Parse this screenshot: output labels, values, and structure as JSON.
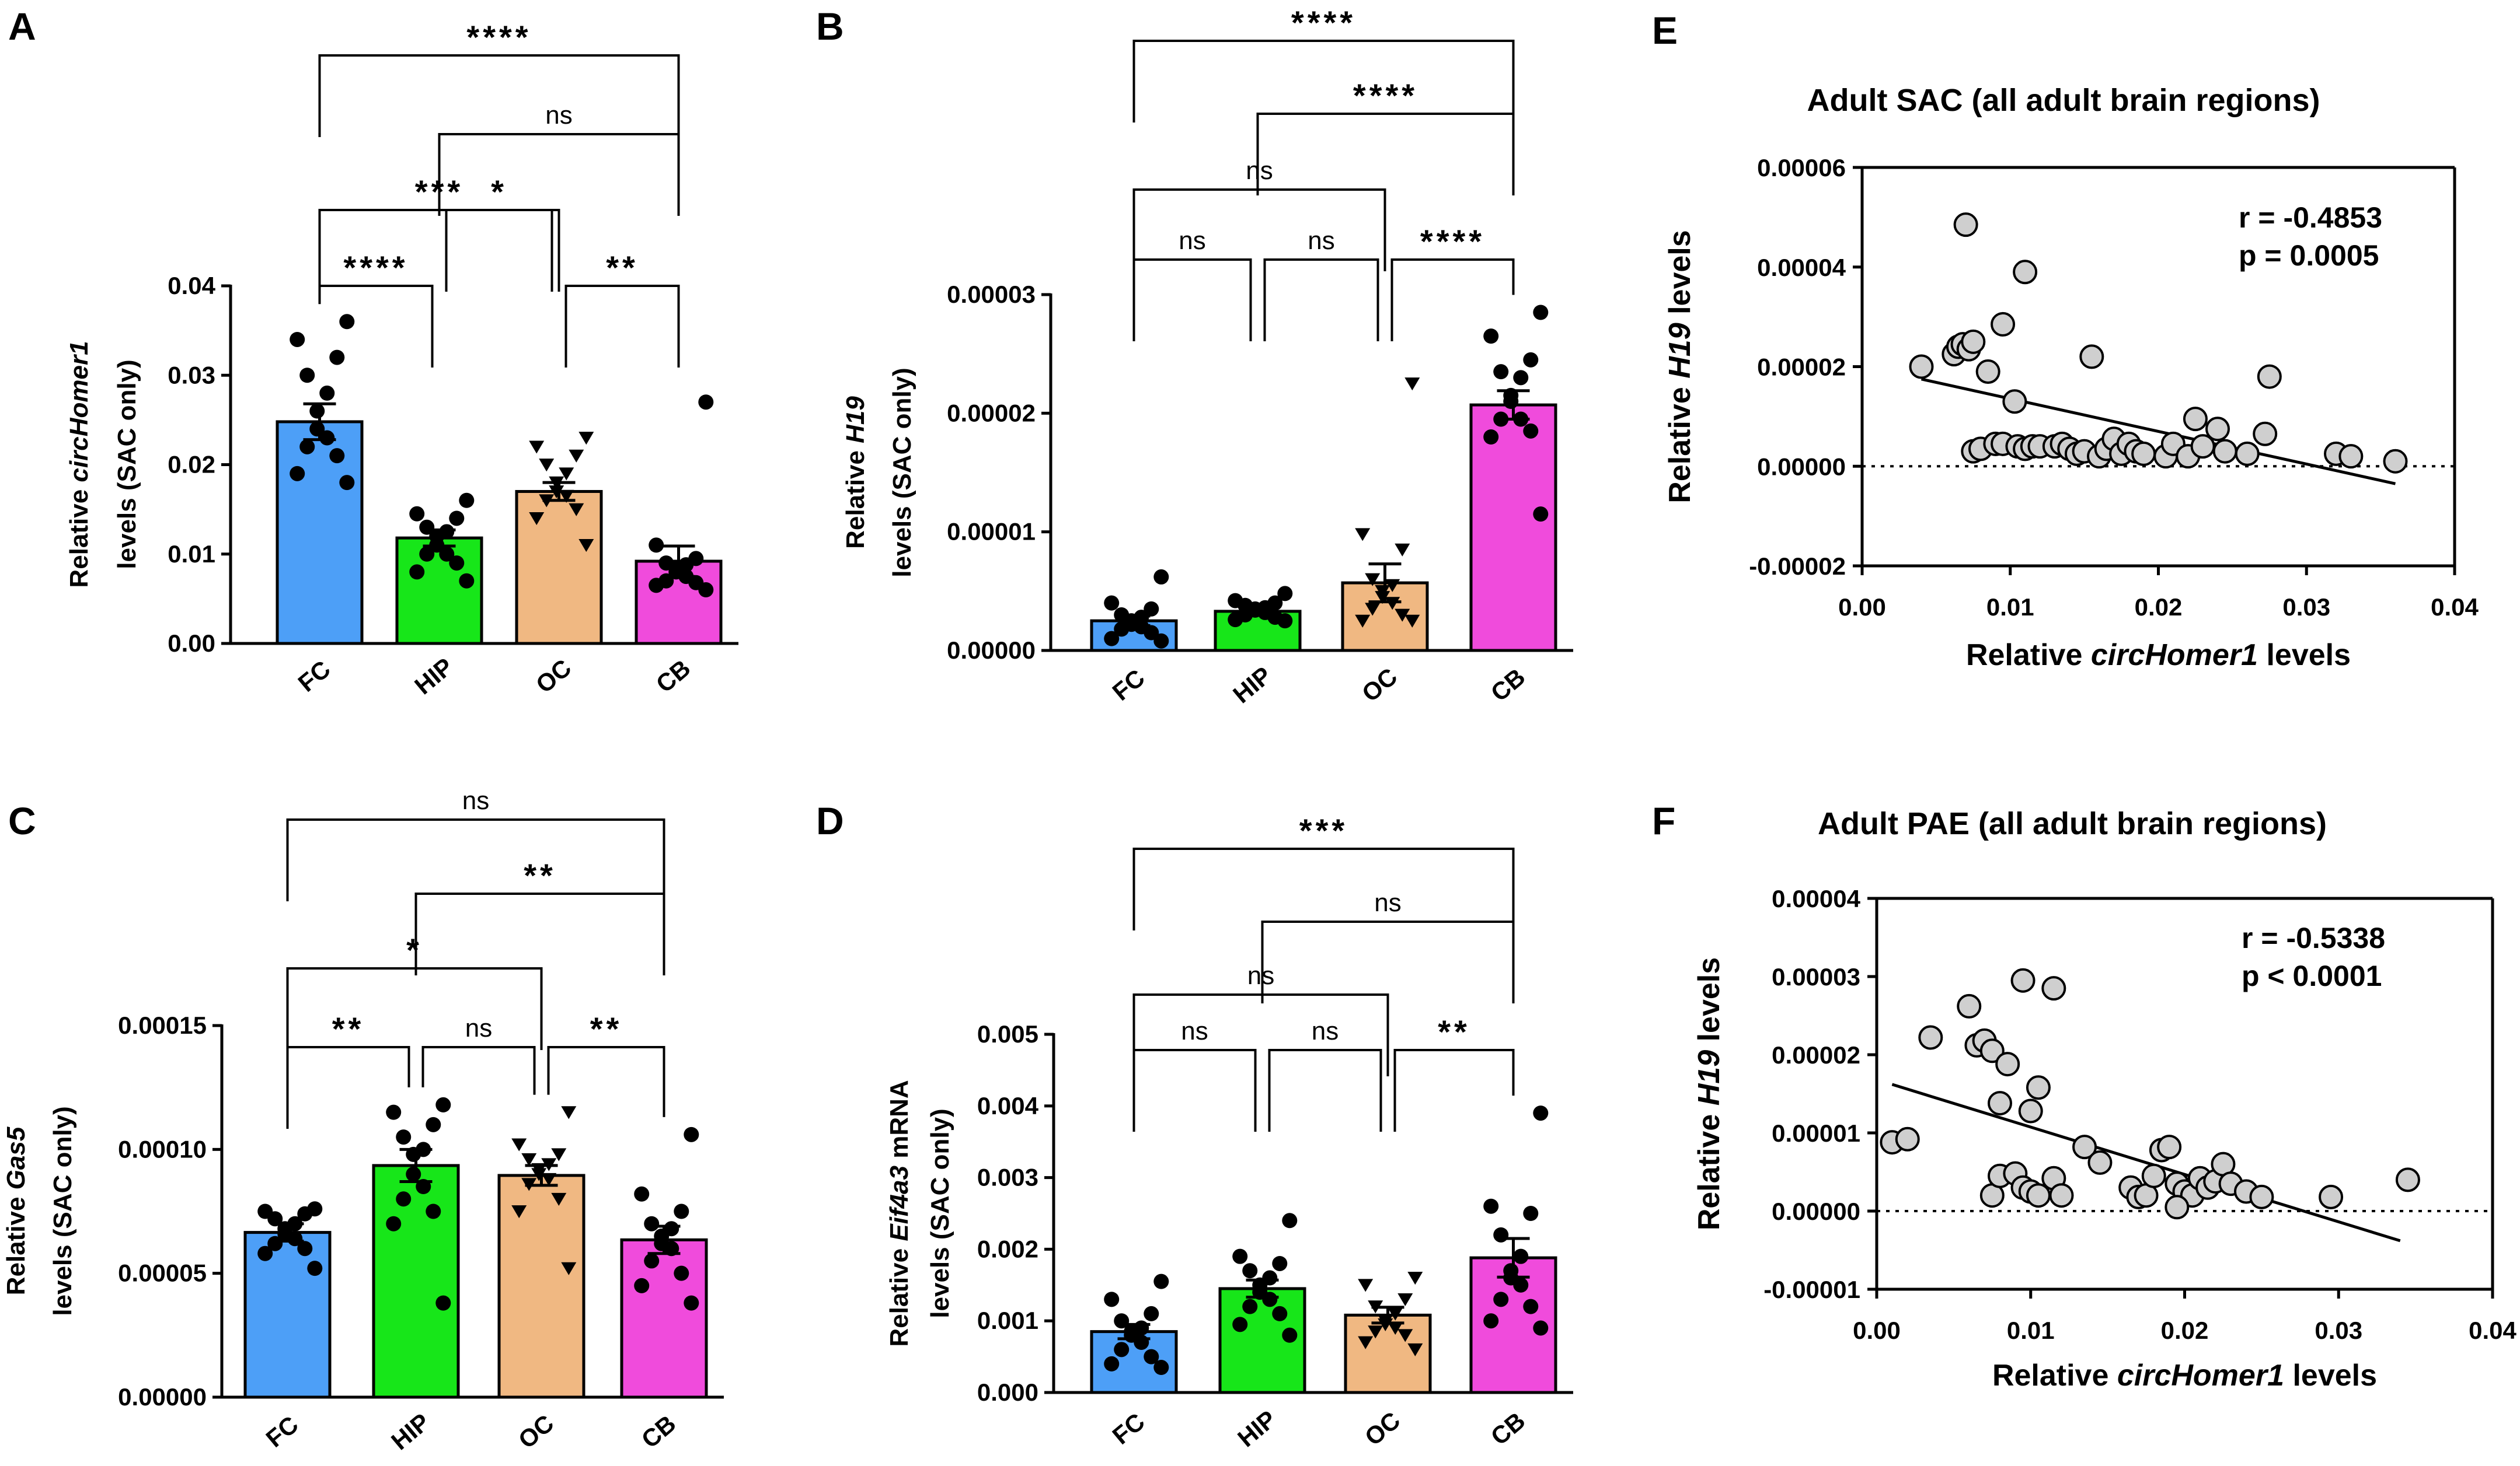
{
  "colors": {
    "FC": "#4d9ff7",
    "HIP": "#17e619",
    "OC": "#f0b882",
    "CB": "#f04bdc",
    "scatter_fill": "#cfcfcf"
  },
  "chart_data": [
    {
      "panel": "A",
      "type": "bar",
      "categories": [
        "FC",
        "HIP",
        "OC",
        "CB"
      ],
      "ylabel_lines": [
        "Relative circHomer1",
        "levels (SAC only)"
      ],
      "ylabel_italic": "circHomer1",
      "ylim": [
        0,
        0.04
      ],
      "yticks": [
        "0.00",
        "0.01",
        "0.02",
        "0.03",
        "0.04"
      ],
      "means": [
        0.0248,
        0.0118,
        0.017,
        0.0092
      ],
      "sems": [
        0.002,
        0.0009,
        0.001,
        0.0017
      ],
      "markers": [
        "circle",
        "circle",
        "triangle",
        "circle"
      ],
      "points": [
        [
          0.036,
          0.034,
          0.032,
          0.03,
          0.028,
          0.026,
          0.024,
          0.023,
          0.022,
          0.021,
          0.019,
          0.018
        ],
        [
          0.016,
          0.0145,
          0.014,
          0.013,
          0.0125,
          0.012,
          0.011,
          0.01,
          0.01,
          0.009,
          0.008,
          0.007
        ],
        [
          0.023,
          0.022,
          0.021,
          0.02,
          0.019,
          0.018,
          0.017,
          0.0165,
          0.016,
          0.015,
          0.014,
          0.011
        ],
        [
          0.027,
          0.011,
          0.0095,
          0.009,
          0.0088,
          0.0085,
          0.008,
          0.0075,
          0.007,
          0.0068,
          0.0065,
          0.006
        ]
      ],
      "comparisons": [
        {
          "from": "FC",
          "to": "HIP",
          "label": "****"
        },
        {
          "from": "HIP",
          "to": "OC",
          "label": "*"
        },
        {
          "from": "OC",
          "to": "CB",
          "label": "**"
        },
        {
          "from": "FC",
          "to": "OC",
          "label": "***"
        },
        {
          "from": "HIP",
          "to": "CB",
          "label": "ns"
        },
        {
          "from": "FC",
          "to": "CB",
          "label": "****"
        }
      ]
    },
    {
      "panel": "B",
      "type": "bar",
      "categories": [
        "FC",
        "HIP",
        "OC",
        "CB"
      ],
      "ylabel_lines": [
        "Relative H19",
        "levels (SAC only)"
      ],
      "ylabel_italic": "H19",
      "ylim": [
        0,
        3e-05
      ],
      "yticks": [
        "0.00000",
        "0.00001",
        "0.00002",
        "0.00003"
      ],
      "means": [
        2.5e-06,
        3.3e-06,
        5.7e-06,
        2.07e-05
      ],
      "sems": [
        4e-07,
        3e-07,
        1.6e-06,
        1.2e-06
      ],
      "markers": [
        "circle",
        "circle",
        "triangle",
        "circle"
      ],
      "points": [
        [
          6.2e-06,
          4e-06,
          3.5e-06,
          3e-06,
          2.8e-06,
          2.5e-06,
          2.2e-06,
          2e-06,
          1.8e-06,
          1.5e-06,
          1e-06,
          8e-07
        ],
        [
          4.8e-06,
          4.2e-06,
          4e-06,
          3.8e-06,
          3.6e-06,
          3.5e-06,
          3.4e-06,
          3.2e-06,
          3e-06,
          2.8e-06,
          2.6e-06,
          2.5e-06
        ],
        [
          2.25e-05,
          9.8e-06,
          8.5e-06,
          6e-06,
          5.5e-06,
          5e-06,
          4.5e-06,
          4e-06,
          3.5e-06,
          3e-06,
          2.5e-06,
          2.5e-06
        ],
        [
          2.85e-05,
          2.65e-05,
          2.45e-05,
          2.35e-05,
          2.3e-05,
          2.15e-05,
          2.1e-05,
          1.95e-05,
          1.95e-05,
          1.85e-05,
          1.8e-05,
          1.15e-05
        ]
      ],
      "comparisons": [
        {
          "from": "FC",
          "to": "HIP",
          "label": "ns"
        },
        {
          "from": "HIP",
          "to": "OC",
          "label": "ns"
        },
        {
          "from": "OC",
          "to": "CB",
          "label": "****"
        },
        {
          "from": "FC",
          "to": "OC",
          "label": "ns"
        },
        {
          "from": "HIP",
          "to": "CB",
          "label": "****"
        },
        {
          "from": "FC",
          "to": "CB",
          "label": "****"
        }
      ]
    },
    {
      "panel": "C",
      "type": "bar",
      "categories": [
        "FC",
        "HIP",
        "OC",
        "CB"
      ],
      "ylabel_lines": [
        "Relative Gas5",
        "levels (SAC only)"
      ],
      "ylabel_italic": "Gas5",
      "ylim": [
        0,
        0.00015
      ],
      "yticks": [
        "0.00000",
        "0.00005",
        "0.00010",
        "0.00015"
      ],
      "means": [
        6.65e-05,
        9.35e-05,
        8.95e-05,
        6.35e-05
      ],
      "sems": [
        3.5e-06,
        6.5e-06,
        4e-06,
        5.5e-06
      ],
      "markers": [
        "circle",
        "circle",
        "triangle",
        "circle"
      ],
      "points": [
        [
          7.6e-05,
          7.5e-05,
          7.4e-05,
          7.2e-05,
          7e-05,
          6.8e-05,
          6.6e-05,
          6.4e-05,
          6.2e-05,
          6e-05,
          5.8e-05,
          5.2e-05
        ],
        [
          0.000118,
          0.000115,
          0.00011,
          0.000105,
          0.0001,
          9.8e-05,
          9e-05,
          8.5e-05,
          8e-05,
          7.5e-05,
          7e-05,
          3.8e-05
        ],
        [
          0.000115,
          0.000102,
          9.8e-05,
          9.6e-05,
          9.4e-05,
          9.2e-05,
          9e-05,
          8.8e-05,
          8.6e-05,
          8e-05,
          7.5e-05,
          5.2e-05
        ],
        [
          0.000106,
          8.2e-05,
          7.5e-05,
          7e-05,
          6.8e-05,
          6.5e-05,
          6.2e-05,
          6e-05,
          5.5e-05,
          5e-05,
          4.5e-05,
          3.8e-05
        ]
      ],
      "comparisons": [
        {
          "from": "FC",
          "to": "HIP",
          "label": "**"
        },
        {
          "from": "HIP",
          "to": "OC",
          "label": "ns"
        },
        {
          "from": "OC",
          "to": "CB",
          "label": "**"
        },
        {
          "from": "FC",
          "to": "OC",
          "label": "*"
        },
        {
          "from": "HIP",
          "to": "CB",
          "label": "**"
        },
        {
          "from": "FC",
          "to": "CB",
          "label": "ns"
        }
      ]
    },
    {
      "panel": "D",
      "type": "bar",
      "categories": [
        "FC",
        "HIP",
        "OC",
        "CB"
      ],
      "ylabel_lines": [
        "Relative Eif4a3 mRNA",
        "levels (SAC only)"
      ],
      "ylabel_italic": "Eif4a3",
      "ylim": [
        0,
        0.005
      ],
      "yticks": [
        "0.000",
        "0.001",
        "0.002",
        "0.003",
        "0.004",
        "0.005"
      ],
      "means": [
        0.00085,
        0.00145,
        0.00108,
        0.00188
      ],
      "sems": [
        0.0001,
        0.00012,
        0.00011,
        0.00027
      ],
      "markers": [
        "circle",
        "circle",
        "triangle",
        "circle"
      ],
      "points": [
        [
          0.00155,
          0.0013,
          0.0011,
          0.001,
          0.0009,
          0.00085,
          0.0008,
          0.0007,
          0.0006,
          0.0005,
          0.0004,
          0.00035
        ],
        [
          0.0024,
          0.0019,
          0.0018,
          0.0017,
          0.0016,
          0.0015,
          0.0014,
          0.0013,
          0.0012,
          0.0011,
          0.00095,
          0.0008
        ],
        [
          0.0016,
          0.0015,
          0.0013,
          0.0012,
          0.0011,
          0.001,
          0.00095,
          0.0009,
          0.00085,
          0.0008,
          0.0007,
          0.0006
        ],
        [
          0.0039,
          0.0026,
          0.0025,
          0.0022,
          0.0019,
          0.0017,
          0.0016,
          0.0015,
          0.0013,
          0.0012,
          0.001,
          0.0009
        ]
      ],
      "comparisons": [
        {
          "from": "FC",
          "to": "HIP",
          "label": "ns"
        },
        {
          "from": "HIP",
          "to": "OC",
          "label": "ns"
        },
        {
          "from": "OC",
          "to": "CB",
          "label": "**"
        },
        {
          "from": "FC",
          "to": "OC",
          "label": "ns"
        },
        {
          "from": "HIP",
          "to": "CB",
          "label": "ns"
        },
        {
          "from": "FC",
          "to": "CB",
          "label": "***"
        }
      ]
    },
    {
      "panel": "E",
      "type": "scatter",
      "title": "Adult SAC (all adult brain regions)",
      "xlabel": "Relative circHomer1 levels",
      "xlabel_italic": "circHomer1",
      "ylabel": "Relative H19 levels",
      "ylabel_italic": "H19",
      "xlim": [
        0,
        0.04
      ],
      "ylim": [
        -2e-05,
        6e-05
      ],
      "xticks": [
        "0.00",
        "0.01",
        "0.02",
        "0.03",
        "0.04"
      ],
      "yticks": [
        "-0.00002",
        "0.00000",
        "0.00002",
        "0.00004",
        "0.00006"
      ],
      "stat_r": "r = -0.4853",
      "stat_p": "p = 0.0005",
      "regression": {
        "x1": 0.004,
        "y1": 1.75e-05,
        "x2": 0.036,
        "y2": -3.5e-06
      },
      "points": [
        [
          0.004,
          2e-05
        ],
        [
          0.0062,
          2.25e-05
        ],
        [
          0.0065,
          2.4e-05
        ],
        [
          0.0068,
          2.45e-05
        ],
        [
          0.007,
          4.85e-05
        ],
        [
          0.0072,
          2.35e-05
        ],
        [
          0.0075,
          2.5e-05
        ],
        [
          0.0085,
          1.9e-05
        ],
        [
          0.0095,
          2.85e-05
        ],
        [
          0.0103,
          1.3e-05
        ],
        [
          0.011,
          3.9e-05
        ],
        [
          0.0075,
          3e-06
        ],
        [
          0.008,
          3.5e-06
        ],
        [
          0.009,
          4.5e-06
        ],
        [
          0.0095,
          4.5e-06
        ],
        [
          0.0105,
          4e-06
        ],
        [
          0.011,
          3.5e-06
        ],
        [
          0.0115,
          4e-06
        ],
        [
          0.012,
          4e-06
        ],
        [
          0.013,
          4e-06
        ],
        [
          0.0135,
          4.5e-06
        ],
        [
          0.014,
          3.5e-06
        ],
        [
          0.0145,
          2.5e-06
        ],
        [
          0.015,
          3e-06
        ],
        [
          0.0155,
          2.2e-05
        ],
        [
          0.016,
          2e-06
        ],
        [
          0.0165,
          3.5e-06
        ],
        [
          0.017,
          5.5e-06
        ],
        [
          0.0175,
          2.5e-06
        ],
        [
          0.018,
          4.5e-06
        ],
        [
          0.0185,
          3e-06
        ],
        [
          0.019,
          2.5e-06
        ],
        [
          0.0205,
          2e-06
        ],
        [
          0.021,
          4.5e-06
        ],
        [
          0.022,
          2e-06
        ],
        [
          0.0225,
          9.5e-06
        ],
        [
          0.023,
          4e-06
        ],
        [
          0.024,
          7.5e-06
        ],
        [
          0.0245,
          3e-06
        ],
        [
          0.026,
          2.5e-06
        ],
        [
          0.0272,
          6.5e-06
        ],
        [
          0.0275,
          1.8e-05
        ],
        [
          0.032,
          2.5e-06
        ],
        [
          0.033,
          2e-06
        ],
        [
          0.036,
          1e-06
        ]
      ]
    },
    {
      "panel": "F",
      "type": "scatter",
      "title": "Adult PAE (all adult brain regions)",
      "xlabel": "Relative circHomer1 levels",
      "xlabel_italic": "circHomer1",
      "ylabel": "Relative H19 levels",
      "ylabel_italic": "H19",
      "xlim": [
        0,
        0.04
      ],
      "ylim": [
        -1e-05,
        4e-05
      ],
      "xticks": [
        "0.00",
        "0.01",
        "0.02",
        "0.03",
        "0.04"
      ],
      "yticks": [
        "-0.00001",
        "0.00000",
        "0.00001",
        "0.00002",
        "0.00003",
        "0.00004"
      ],
      "stat_r": "r = -0.5338",
      "stat_p": "p < 0.0001",
      "regression": {
        "x1": 0.001,
        "y1": 1.62e-05,
        "x2": 0.034,
        "y2": -3.8e-06
      },
      "points": [
        [
          0.001,
          8.8e-06
        ],
        [
          0.002,
          9.2e-06
        ],
        [
          0.0035,
          2.22e-05
        ],
        [
          0.006,
          2.62e-05
        ],
        [
          0.0065,
          2.12e-05
        ],
        [
          0.007,
          2.18e-05
        ],
        [
          0.0075,
          2.05e-05
        ],
        [
          0.0085,
          1.88e-05
        ],
        [
          0.0095,
          2.95e-05
        ],
        [
          0.0105,
          1.58e-05
        ],
        [
          0.0115,
          2.85e-05
        ],
        [
          0.008,
          1.38e-05
        ],
        [
          0.01,
          1.28e-05
        ],
        [
          0.0075,
          2e-06
        ],
        [
          0.008,
          4.5e-06
        ],
        [
          0.009,
          4.8e-06
        ],
        [
          0.0095,
          3e-06
        ],
        [
          0.01,
          2.5e-06
        ],
        [
          0.0105,
          2e-06
        ],
        [
          0.0115,
          4.2e-06
        ],
        [
          0.012,
          2e-06
        ],
        [
          0.0135,
          8.2e-06
        ],
        [
          0.0145,
          6.2e-06
        ],
        [
          0.0165,
          3e-06
        ],
        [
          0.017,
          1.8e-06
        ],
        [
          0.0175,
          2e-06
        ],
        [
          0.018,
          4.5e-06
        ],
        [
          0.0185,
          7.8e-06
        ],
        [
          0.019,
          8.2e-06
        ],
        [
          0.0195,
          3.5e-06
        ],
        [
          0.02,
          2.5e-06
        ],
        [
          0.0205,
          2e-06
        ],
        [
          0.021,
          4.2e-06
        ],
        [
          0.0215,
          3e-06
        ],
        [
          0.022,
          3.8e-06
        ],
        [
          0.0225,
          6e-06
        ],
        [
          0.023,
          3.5e-06
        ],
        [
          0.024,
          2.5e-06
        ],
        [
          0.025,
          1.8e-06
        ],
        [
          0.0295,
          1.8e-06
        ],
        [
          0.0345,
          4e-06
        ],
        [
          0.0195,
          5e-07
        ]
      ]
    }
  ]
}
